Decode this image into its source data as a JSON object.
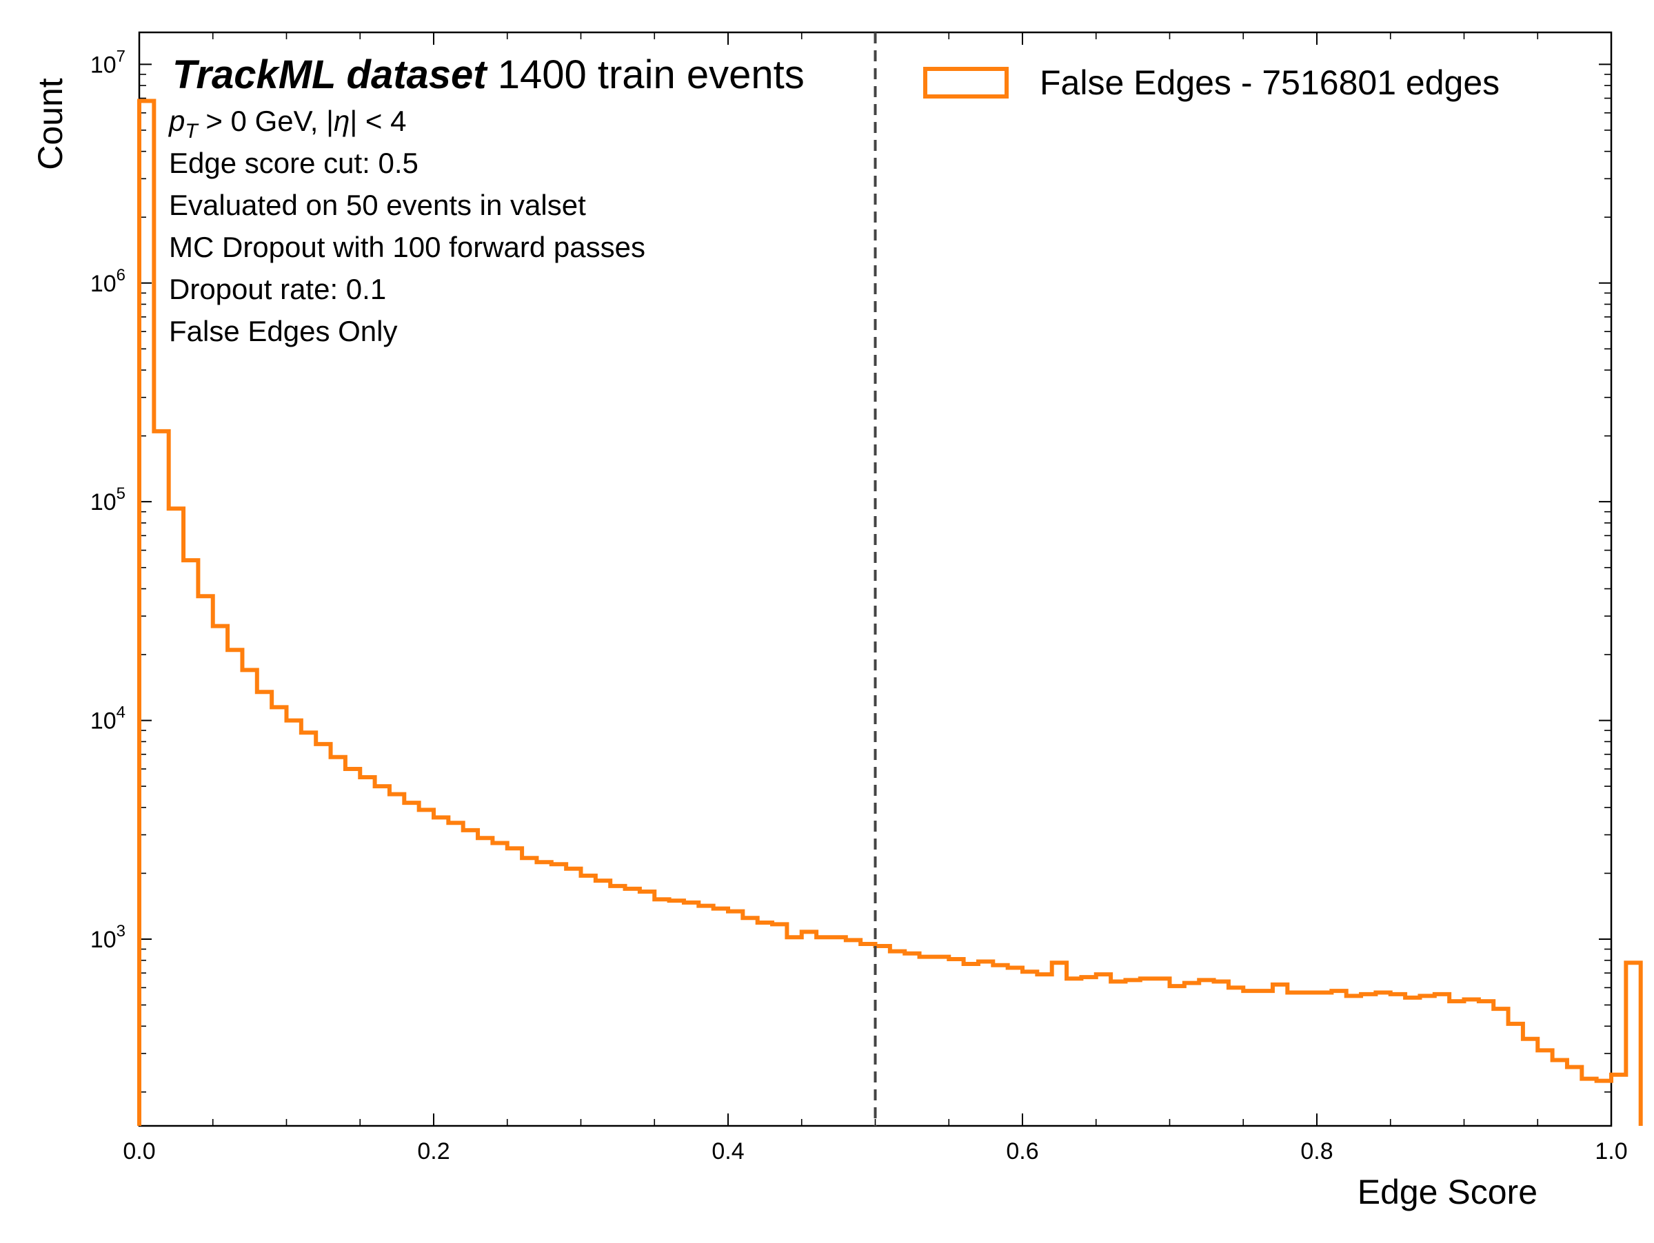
{
  "chart_data": {
    "type": "histogram-step",
    "xlabel": "Edge Score",
    "ylabel": "Count",
    "xlim": [
      0.0,
      1.0
    ],
    "ylim": [
      140,
      14000000
    ],
    "yscale": "log",
    "x_ticks": [
      0.0,
      0.2,
      0.4,
      0.6,
      0.8,
      1.0
    ],
    "x_tick_labels": [
      "0.0",
      "0.2",
      "0.4",
      "0.6",
      "0.8",
      "1.0"
    ],
    "y_ticks": [
      {
        "value": 1000,
        "base": "10",
        "exp": "3"
      },
      {
        "value": 10000,
        "base": "10",
        "exp": "4"
      },
      {
        "value": 100000,
        "base": "10",
        "exp": "5"
      },
      {
        "value": 1000000,
        "base": "10",
        "exp": "6"
      },
      {
        "value": 10000000,
        "base": "10",
        "exp": "7"
      }
    ],
    "cut_line": {
      "x": 0.5,
      "color": "#444444",
      "style": "dashed"
    },
    "series": [
      {
        "name": "False Edges - 7516801 edges",
        "color": "#ff7f0e",
        "bin_width": 0.01,
        "values": [
          6800000,
          210000,
          93000,
          54000,
          37000,
          27000,
          21000,
          17000,
          13500,
          11500,
          10000,
          8800,
          7800,
          6800,
          6000,
          5500,
          5000,
          4600,
          4200,
          3900,
          3600,
          3400,
          3150,
          2900,
          2750,
          2600,
          2350,
          2250,
          2200,
          2100,
          1950,
          1850,
          1750,
          1700,
          1650,
          1520,
          1500,
          1470,
          1420,
          1380,
          1340,
          1250,
          1190,
          1170,
          1020,
          1080,
          1020,
          1020,
          990,
          950,
          930,
          880,
          860,
          830,
          830,
          810,
          770,
          790,
          760,
          740,
          710,
          690,
          780,
          660,
          670,
          690,
          640,
          650,
          660,
          660,
          610,
          630,
          650,
          640,
          600,
          580,
          580,
          620,
          570,
          570,
          570,
          580,
          550,
          560,
          570,
          560,
          540,
          550,
          560,
          520,
          530,
          520,
          480,
          410,
          350,
          310,
          280,
          260,
          230,
          225,
          240,
          780
        ],
        "edges_note": ""
      }
    ],
    "legend": {
      "placement": "upper-right"
    },
    "annotations": {
      "bold_title": "TrackML dataset",
      "title_rest": "1400 train events",
      "pt_symbol": "p",
      "pt_sub": "T",
      "pt_rest": " > 0 GeV, |",
      "eta": "η",
      "pt_end": "| < 4",
      "lines": [
        "Edge score cut: 0.5",
        "Evaluated on 50 events in valset",
        "MC Dropout with 100 forward passes",
        "Dropout rate: 0.1",
        "False Edges Only"
      ]
    }
  }
}
